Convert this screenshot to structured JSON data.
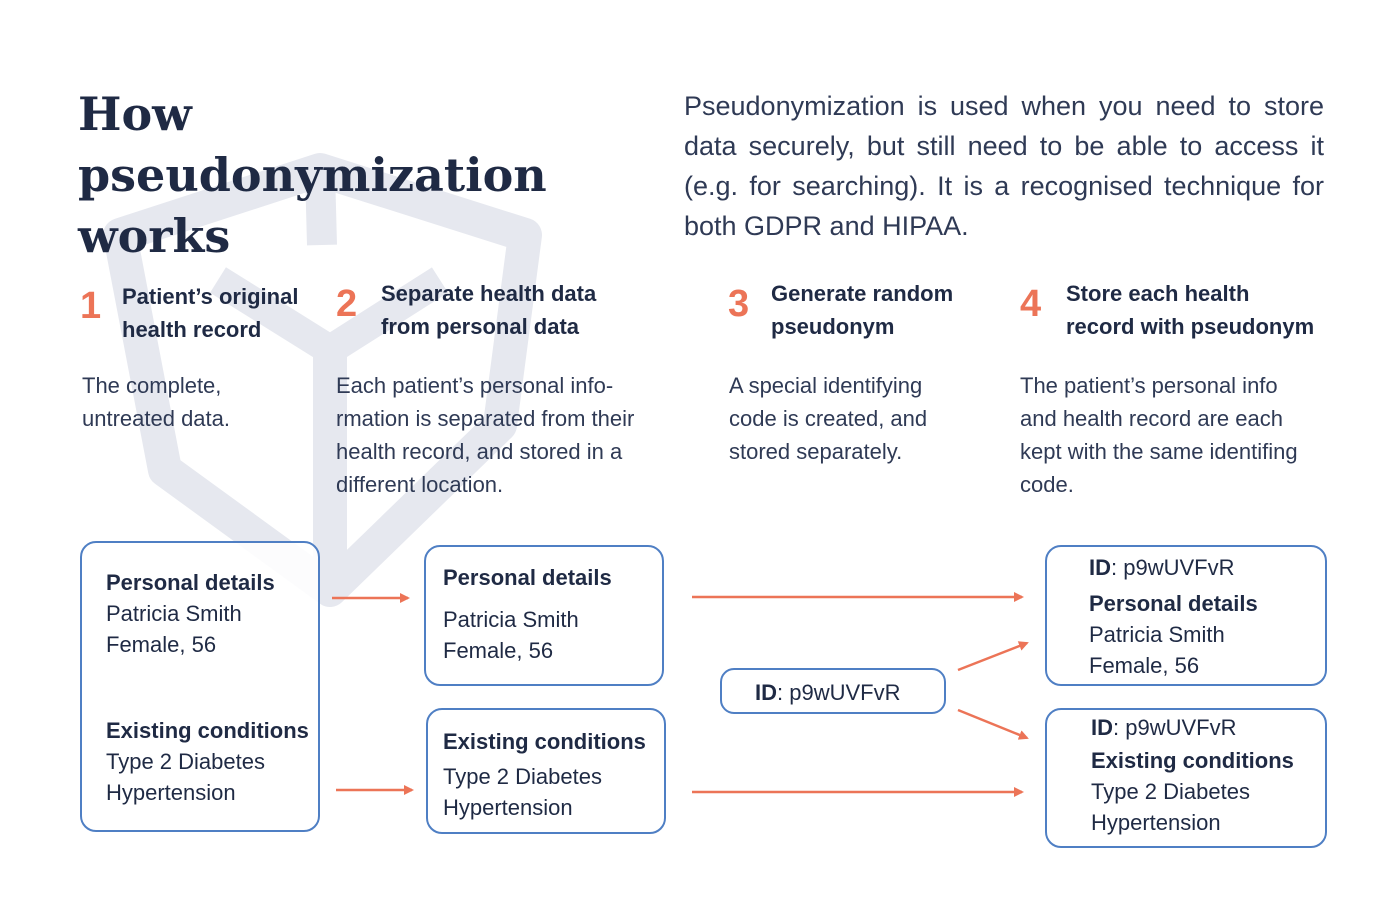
{
  "title": "How pseudonymization works",
  "intro": "Pseudonymization is used when you need to store data securely, but still need to be able to access it (e.g. for searching). It is a recognised technique for both GDPR and HIPAA.",
  "steps": [
    {
      "number": "1",
      "title_line1": "Patient’s original",
      "title_line2": "health record",
      "desc_lines": [
        "The complete,",
        "untreated data."
      ]
    },
    {
      "number": "2",
      "title_line1": "Separate health data",
      "title_line2": "from personal data",
      "desc_lines": [
        "Each patient’s personal info-",
        "rmation is separated from their",
        "health record, and stored in a",
        "different location."
      ]
    },
    {
      "number": "3",
      "title_line1": "Generate random",
      "title_line2": "pseudonym",
      "desc_lines": [
        "A special identifying",
        "code is created, and",
        "stored separately."
      ]
    },
    {
      "number": "4",
      "title_line1": "Store each health",
      "title_line2": "record with pseudonym",
      "desc_lines": [
        "The patient’s personal info",
        "and health record are each",
        "kept with the same identifing",
        "code."
      ]
    }
  ],
  "original_record": {
    "personal_heading": "Personal details",
    "name": "Patricia Smith",
    "demographics": "Female, 56",
    "conditions_heading": "Existing conditions",
    "condition1": "Type 2 Diabetes",
    "condition2": "Hypertension"
  },
  "separated": {
    "personal": {
      "heading": "Personal details",
      "name": "Patricia Smith",
      "demographics": "Female, 56"
    },
    "conditions": {
      "heading": "Existing conditions",
      "condition1": "Type 2 Diabetes",
      "condition2": "Hypertension"
    }
  },
  "pseudonym": {
    "id_label": "ID",
    "id_value": ": p9wUVFvR"
  },
  "stored": {
    "personal": {
      "id_label": "ID",
      "id_value": ": p9wUVFvR",
      "heading": "Personal details",
      "name": "Patricia Smith",
      "demographics": "Female, 56"
    },
    "conditions": {
      "id_label": "ID",
      "id_value": ": p9wUVFvR",
      "heading": "Existing conditions",
      "condition1": "Type 2 Diabetes",
      "condition2": "Hypertension"
    }
  },
  "colors": {
    "accent": "#ec7457",
    "box_border": "#4f7fc4",
    "text": "#1f2a44",
    "watermark": "#e6e8ef"
  }
}
